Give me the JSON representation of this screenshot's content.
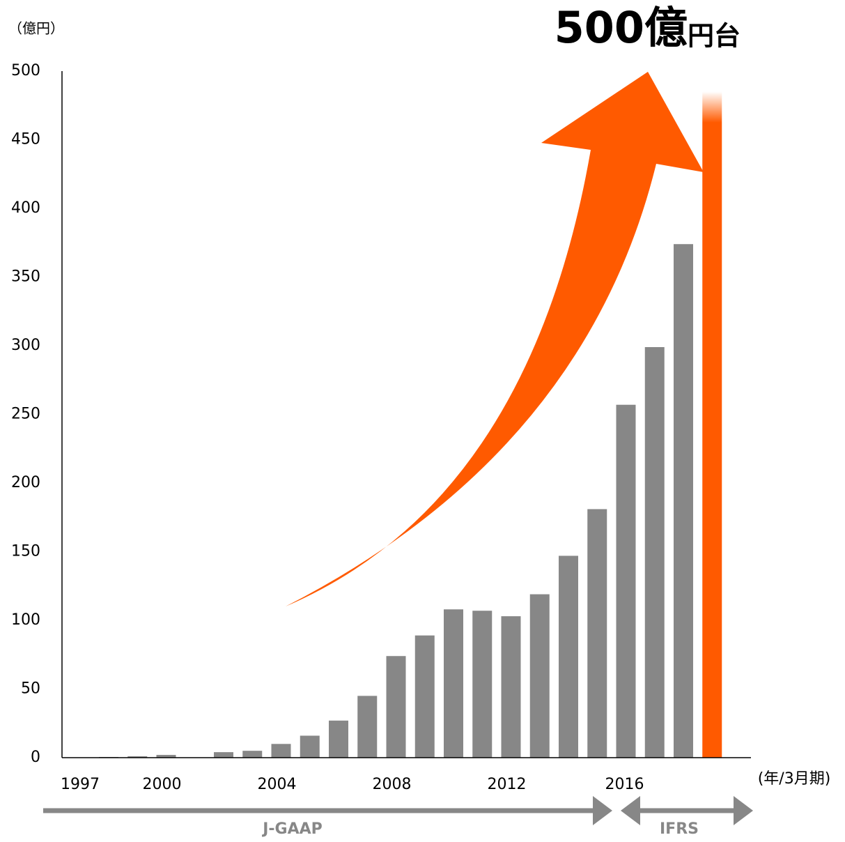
{
  "chart_data": {
    "type": "bar",
    "title": "500億",
    "title_suffix": "円台",
    "y_unit_label": "（億円）",
    "x_unit_label": "(年/3月期)",
    "categories": [
      "1997",
      null,
      null,
      "2000",
      null,
      null,
      null,
      "2004",
      null,
      null,
      null,
      "2008",
      null,
      null,
      null,
      "2012",
      null,
      null,
      null,
      "2016",
      null,
      null,
      null
    ],
    "values": [
      0,
      0.5,
      1,
      2,
      0,
      4,
      5,
      10,
      16,
      27,
      45,
      74,
      89,
      108,
      107,
      103,
      119,
      147,
      181,
      257,
      299,
      374,
      500
    ],
    "colors": [
      "#878787",
      "#878787",
      "#878787",
      "#878787",
      "#878787",
      "#878787",
      "#878787",
      "#878787",
      "#878787",
      "#878787",
      "#878787",
      "#878787",
      "#878787",
      "#878787",
      "#878787",
      "#878787",
      "#878787",
      "#878787",
      "#878787",
      "#878787",
      "#878787",
      "#878787",
      "#ff5a00"
    ],
    "ylim": [
      0,
      500
    ],
    "yticks": [
      0,
      50,
      100,
      150,
      200,
      250,
      300,
      350,
      400,
      450,
      500
    ],
    "grid": false,
    "periods": [
      "J-GAAP",
      "IFRS"
    ]
  }
}
